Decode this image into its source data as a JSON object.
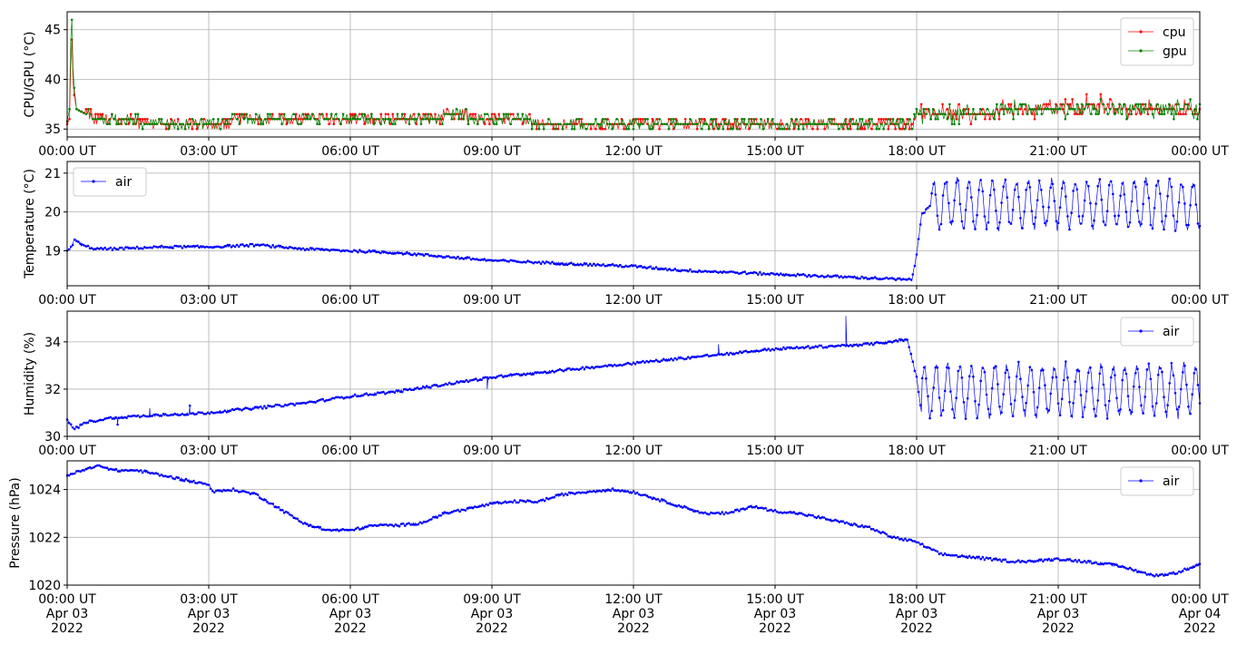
{
  "chart_data": [
    {
      "type": "line",
      "ylabel": "CPU/GPU (°C)",
      "ylim": [
        34.2,
        46.8
      ],
      "yticks": [
        35,
        40,
        45
      ],
      "x_tick_labels": [
        "00:00 UT",
        "03:00 UT",
        "06:00 UT",
        "09:00 UT",
        "12:00 UT",
        "15:00 UT",
        "18:00 UT",
        "21:00 UT",
        "00:00 UT"
      ],
      "x_hours_range": [
        0,
        24
      ],
      "grid": true,
      "legend": "top-right",
      "series": [
        {
          "name": "cpu",
          "color": "#ff0000",
          "points": [
            [
              0,
              35.5
            ],
            [
              0.05,
              36
            ],
            [
              0.08,
              42.5
            ],
            [
              0.1,
              44
            ],
            [
              0.13,
              39
            ],
            [
              0.2,
              37
            ],
            [
              0.4,
              36.5
            ],
            [
              0.6,
              36
            ],
            [
              1,
              35.8
            ],
            [
              2,
              35.7
            ],
            [
              3,
              35.7
            ],
            [
              4,
              35.8
            ],
            [
              5,
              35.8
            ],
            [
              6,
              35.8
            ],
            [
              7,
              35.8
            ],
            [
              7.9,
              35.8
            ],
            [
              8,
              36.5
            ],
            [
              9,
              36
            ],
            [
              10,
              35.7
            ],
            [
              11,
              35.7
            ],
            [
              12,
              35.6
            ],
            [
              13,
              35.6
            ],
            [
              14,
              35.5
            ],
            [
              15,
              35.5
            ],
            [
              16,
              35.4
            ],
            [
              17,
              35.3
            ],
            [
              17.9,
              35.4
            ],
            [
              18,
              36.5
            ],
            [
              19,
              36.6
            ],
            [
              20,
              36.8
            ],
            [
              21,
              36.9
            ],
            [
              22,
              37.5
            ],
            [
              22.5,
              36.8
            ],
            [
              23,
              36.8
            ],
            [
              24,
              36.9
            ]
          ]
        },
        {
          "name": "gpu",
          "color": "#008000",
          "points": [
            [
              0,
              35.8
            ],
            [
              0.05,
              37
            ],
            [
              0.08,
              45.5
            ],
            [
              0.1,
              46
            ],
            [
              0.13,
              40
            ],
            [
              0.2,
              37
            ],
            [
              0.4,
              36.5
            ],
            [
              0.6,
              36
            ],
            [
              1,
              35.8
            ],
            [
              2,
              35.7
            ],
            [
              3,
              35.7
            ],
            [
              4,
              35.8
            ],
            [
              5,
              35.8
            ],
            [
              6,
              35.8
            ],
            [
              7,
              35.8
            ],
            [
              7.9,
              35.8
            ],
            [
              8,
              36.5
            ],
            [
              9,
              36
            ],
            [
              10,
              35.7
            ],
            [
              11,
              35.7
            ],
            [
              12,
              35.6
            ],
            [
              13,
              35.6
            ],
            [
              14,
              35.5
            ],
            [
              15,
              35.5
            ],
            [
              16,
              35.4
            ],
            [
              17,
              35.3
            ],
            [
              17.9,
              35.4
            ],
            [
              18,
              36.5
            ],
            [
              19,
              36.6
            ],
            [
              20,
              36.8
            ],
            [
              21,
              36.9
            ],
            [
              22,
              37.3
            ],
            [
              22.5,
              36.8
            ],
            [
              23,
              36.8
            ],
            [
              24,
              36.9
            ]
          ]
        }
      ]
    },
    {
      "type": "line",
      "ylabel": "Temperature (°C)",
      "ylim": [
        18.1,
        21.3
      ],
      "yticks": [
        19,
        20,
        21
      ],
      "x_tick_labels": [
        "00:00 UT",
        "03:00 UT",
        "06:00 UT",
        "09:00 UT",
        "12:00 UT",
        "15:00 UT",
        "18:00 UT",
        "21:00 UT",
        "00:00 UT"
      ],
      "x_hours_range": [
        0,
        24
      ],
      "grid": true,
      "legend": "top-left",
      "series": [
        {
          "name": "air",
          "color": "#0000ff",
          "trend": [
            [
              0,
              19.0
            ],
            [
              0.1,
              19.1
            ],
            [
              0.15,
              19.3
            ],
            [
              0.3,
              19.15
            ],
            [
              0.6,
              19.05
            ],
            [
              1,
              19.05
            ],
            [
              2,
              19.1
            ],
            [
              3,
              19.1
            ],
            [
              4,
              19.15
            ],
            [
              4.5,
              19.1
            ],
            [
              5,
              19.05
            ],
            [
              6,
              19.0
            ],
            [
              7,
              18.95
            ],
            [
              8,
              18.85
            ],
            [
              9,
              18.75
            ],
            [
              10,
              18.7
            ],
            [
              11,
              18.65
            ],
            [
              12,
              18.6
            ],
            [
              13,
              18.5
            ],
            [
              14,
              18.45
            ],
            [
              15,
              18.4
            ],
            [
              16,
              18.35
            ],
            [
              17,
              18.3
            ],
            [
              17.9,
              18.25
            ],
            [
              18,
              18.9
            ],
            [
              18.1,
              19.9
            ],
            [
              18.3,
              20.2
            ]
          ],
          "oscillation": {
            "from": 18.3,
            "to": 24,
            "period_hours": 0.25,
            "low": 19.6,
            "high": 20.8
          }
        }
      ]
    },
    {
      "type": "line",
      "ylabel": "Humidity (%)",
      "ylim": [
        30,
        35.3
      ],
      "yticks": [
        30,
        32,
        34
      ],
      "x_tick_labels": [
        "00:00 UT",
        "03:00 UT",
        "06:00 UT",
        "09:00 UT",
        "12:00 UT",
        "15:00 UT",
        "18:00 UT",
        "21:00 UT",
        "00:00 UT"
      ],
      "x_hours_range": [
        0,
        24
      ],
      "grid": true,
      "legend": "top-right",
      "series": [
        {
          "name": "air",
          "color": "#0000ff",
          "trend": [
            [
              0,
              30.7
            ],
            [
              0.15,
              30.3
            ],
            [
              0.4,
              30.6
            ],
            [
              1,
              30.8
            ],
            [
              2,
              30.9
            ],
            [
              3,
              31.0
            ],
            [
              4,
              31.2
            ],
            [
              5,
              31.4
            ],
            [
              6,
              31.7
            ],
            [
              7,
              31.9
            ],
            [
              8,
              32.2
            ],
            [
              9,
              32.5
            ],
            [
              10,
              32.7
            ],
            [
              11,
              32.9
            ],
            [
              12,
              33.1
            ],
            [
              13,
              33.3
            ],
            [
              14,
              33.5
            ],
            [
              15,
              33.7
            ],
            [
              16,
              33.8
            ],
            [
              17,
              33.9
            ],
            [
              17.8,
              34.1
            ],
            [
              18,
              32.5
            ],
            [
              18.1,
              31.0
            ]
          ],
          "oscillation": {
            "from": 18.1,
            "to": 24,
            "period_hours": 0.25,
            "low": 30.9,
            "high": 33.0
          },
          "spikes": [
            [
              16.5,
              35.1
            ],
            [
              13.8,
              33.9
            ],
            [
              8.9,
              32.0
            ],
            [
              1.07,
              30.5
            ],
            [
              1.75,
              31.2
            ],
            [
              2.6,
              31.3
            ]
          ]
        }
      ]
    },
    {
      "type": "line",
      "ylabel": "Pressure (hPa)",
      "ylim": [
        1020,
        1025.2
      ],
      "yticks": [
        1020,
        1022,
        1024
      ],
      "x_tick_labels": [
        "00:00 UT\nApr 03\n2022",
        "03:00 UT\nApr 03\n2022",
        "06:00 UT\nApr 03\n2022",
        "09:00 UT\nApr 03\n2022",
        "12:00 UT\nApr 03\n2022",
        "15:00 UT\nApr 03\n2022",
        "18:00 UT\nApr 03\n2022",
        "21:00 UT\nApr 03\n2022",
        "00:00 UT\nApr 04\n2022"
      ],
      "x_hours_range": [
        0,
        24
      ],
      "grid": true,
      "legend": "top-right",
      "series": [
        {
          "name": "air",
          "color": "#0000ff",
          "trend": [
            [
              0,
              1024.6
            ],
            [
              0.5,
              1024.9
            ],
            [
              0.7,
              1025.0
            ],
            [
              1,
              1024.8
            ],
            [
              1.5,
              1024.8
            ],
            [
              2,
              1024.6
            ],
            [
              2.5,
              1024.4
            ],
            [
              3,
              1024.2
            ],
            [
              3.1,
              1023.9
            ],
            [
              3.5,
              1024.0
            ],
            [
              4,
              1023.8
            ],
            [
              4.5,
              1023.2
            ],
            [
              5,
              1022.6
            ],
            [
              5.5,
              1022.3
            ],
            [
              6,
              1022.3
            ],
            [
              6.5,
              1022.5
            ],
            [
              7,
              1022.5
            ],
            [
              7.5,
              1022.6
            ],
            [
              8,
              1023.0
            ],
            [
              8.5,
              1023.2
            ],
            [
              9,
              1023.4
            ],
            [
              9.5,
              1023.5
            ],
            [
              10,
              1023.5
            ],
            [
              10.5,
              1023.8
            ],
            [
              11,
              1023.9
            ],
            [
              11.5,
              1024.0
            ],
            [
              12,
              1023.9
            ],
            [
              12.5,
              1023.6
            ],
            [
              13,
              1023.3
            ],
            [
              13.5,
              1023.0
            ],
            [
              14,
              1023.0
            ],
            [
              14.5,
              1023.3
            ],
            [
              15,
              1023.1
            ],
            [
              15.5,
              1023.0
            ],
            [
              16,
              1022.8
            ],
            [
              16.5,
              1022.6
            ],
            [
              17,
              1022.4
            ],
            [
              17.5,
              1022.0
            ],
            [
              18,
              1021.8
            ],
            [
              18.5,
              1021.3
            ],
            [
              19,
              1021.2
            ],
            [
              19.5,
              1021.1
            ],
            [
              20,
              1021.0
            ],
            [
              20.5,
              1021.0
            ],
            [
              21,
              1021.1
            ],
            [
              21.5,
              1021.0
            ],
            [
              22,
              1020.9
            ],
            [
              22.5,
              1020.7
            ],
            [
              23,
              1020.4
            ],
            [
              23.5,
              1020.5
            ],
            [
              24,
              1020.9
            ]
          ]
        }
      ]
    }
  ]
}
